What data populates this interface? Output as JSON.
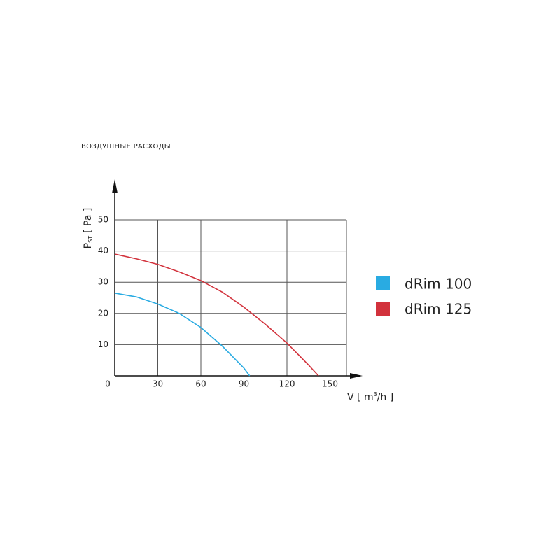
{
  "chart_data": {
    "type": "line",
    "title": "ВОЗДУШНЫЕ РАСХОДЫ",
    "y_label": {
      "main": "P",
      "sub": "ST",
      "unit": "[ Pa ]"
    },
    "x_label": {
      "main": "V [ m",
      "sup": "3",
      "unit": "/h ]"
    },
    "xlim": [
      0,
      160
    ],
    "ylim": [
      0,
      50
    ],
    "xticks": [
      0,
      30,
      60,
      90,
      120,
      150
    ],
    "yticks": [
      10,
      20,
      30,
      40,
      50
    ],
    "grid": true,
    "series": [
      {
        "name": "dRim 100",
        "color": "#29abe2",
        "x": [
          0,
          15,
          30,
          45,
          60,
          75,
          90,
          94
        ],
        "values": [
          26.5,
          25.3,
          23,
          20,
          15.5,
          9.5,
          2.5,
          0
        ]
      },
      {
        "name": "dRim 125",
        "color": "#d2323c",
        "x": [
          0,
          15,
          30,
          45,
          60,
          75,
          90,
          105,
          120,
          135,
          142
        ],
        "values": [
          39,
          37.5,
          35.7,
          33.3,
          30.5,
          26.8,
          22,
          16.5,
          10.5,
          3.5,
          0
        ]
      }
    ]
  }
}
